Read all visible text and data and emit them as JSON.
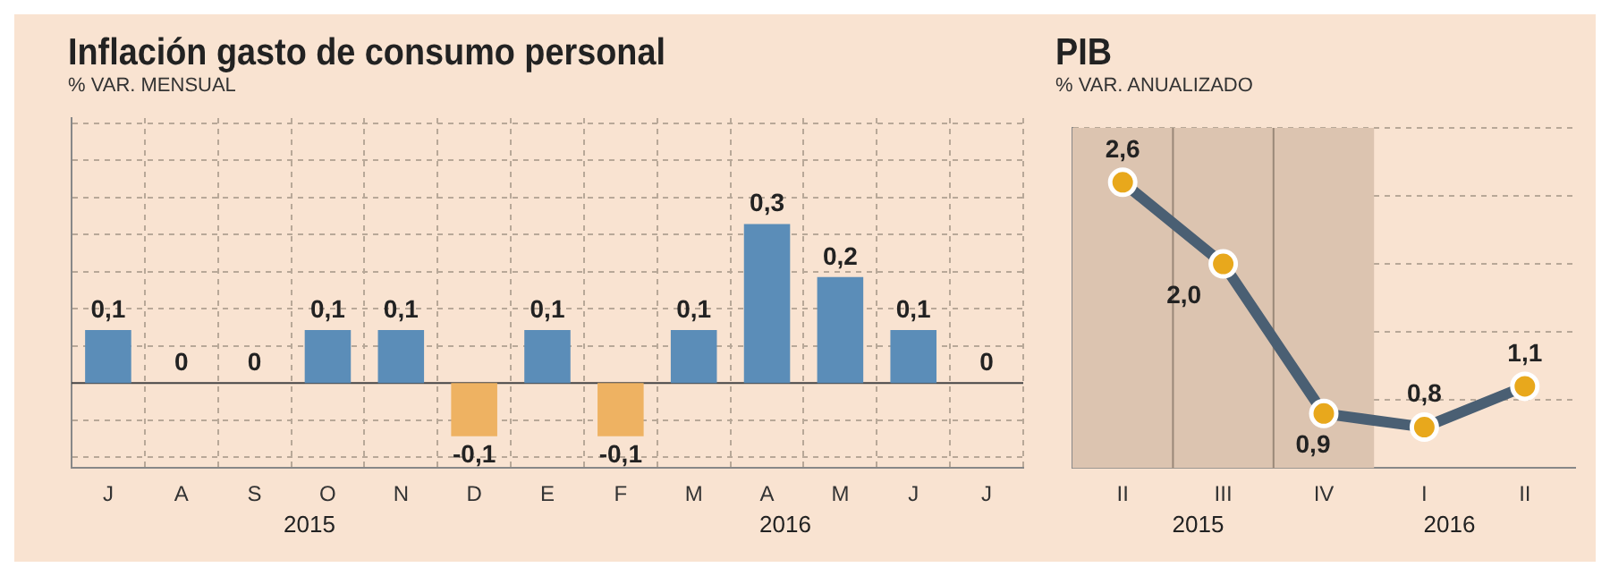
{
  "chart_data": [
    {
      "type": "bar",
      "title": "Inflación gasto de consumo personal",
      "subtitle": "% VAR. MENSUAL",
      "categories": [
        "J",
        "A",
        "S",
        "O",
        "N",
        "D",
        "E",
        "F",
        "M",
        "A",
        "M",
        "J",
        "J"
      ],
      "values": [
        0.1,
        0,
        0,
        0.1,
        0.1,
        -0.1,
        0.1,
        -0.1,
        0.1,
        0.3,
        0.2,
        0.1,
        0
      ],
      "colors": [
        "#5b8db8",
        "#5b8db8",
        "#5b8db8",
        "#5b8db8",
        "#5b8db8",
        "#eeb262",
        "#5b8db8",
        "#eeb262",
        "#5b8db8",
        "#5b8db8",
        "#5b8db8",
        "#5b8db8",
        "#5b8db8"
      ],
      "value_labels": [
        "0,1",
        "0",
        "0",
        "0,1",
        "0,1",
        "-0,1",
        "0,1",
        "-0,1",
        "0,1",
        "0,3",
        "0,2",
        "0,1",
        "0"
      ],
      "ylim": [
        -0.16,
        0.5
      ],
      "yticks": [
        {
          "value": -0.14,
          "label": null
        },
        {
          "value": -0.07,
          "label": null
        },
        {
          "value": 0.07,
          "label": null
        },
        {
          "value": 0.14,
          "label": null
        },
        {
          "value": 0.21,
          "label": null
        },
        {
          "value": 0.28,
          "label": null
        },
        {
          "value": 0.35,
          "label": null
        },
        {
          "value": 0.42,
          "label": null
        },
        {
          "value": 0.49,
          "label": null
        }
      ],
      "tick_labels": "x",
      "grid": true,
      "legend": false,
      "annotations": [
        "2015",
        "2016"
      ]
    },
    {
      "type": "line",
      "title": "PIB",
      "subtitle": "% VAR. ANUALIZADO",
      "categories": [
        "II",
        "III",
        "IV",
        "I",
        "II"
      ],
      "series": [
        {
          "color": "#4a5f73",
          "values": [
            2.6,
            2.0,
            0.9,
            0.8,
            1.1
          ],
          "value_labels": [
            "2,6",
            "2,0",
            "0,9",
            "0,8",
            "1,1"
          ]
        }
      ],
      "marker": "circle",
      "line_style": "solid",
      "tick_labels": "x",
      "grid": "y",
      "legend": false,
      "bands": [
        {
          "axis": "x",
          "from": "II",
          "to": "IV",
          "color": "#dcc4b0"
        }
      ],
      "annotations": [
        "2015",
        "2016"
      ]
    }
  ]
}
